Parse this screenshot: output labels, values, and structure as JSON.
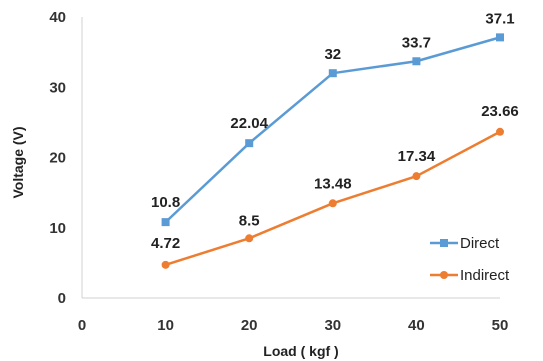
{
  "chart_data": {
    "type": "line",
    "title": "",
    "xlabel": "Load ( kgf )",
    "ylabel": "Voltage (V)",
    "xlim": [
      0,
      50
    ],
    "ylim": [
      0,
      40
    ],
    "x_ticks": [
      0,
      10,
      20,
      30,
      40,
      50
    ],
    "y_ticks": [
      0,
      10,
      20,
      30,
      40
    ],
    "grid": false,
    "legend_position": "bottom-right",
    "x": [
      10,
      20,
      30,
      40,
      50
    ],
    "series": [
      {
        "name": "Direct",
        "values": [
          10.8,
          22.04,
          32,
          33.7,
          37.1
        ],
        "labels": [
          "10.8",
          "22.04",
          "32",
          "33.7",
          "37.1"
        ],
        "color": "#5B9BD5",
        "marker": "square"
      },
      {
        "name": "Indirect",
        "values": [
          4.72,
          8.5,
          13.48,
          17.34,
          23.66
        ],
        "labels": [
          "4.72",
          "8.5",
          "13.48",
          "17.34",
          "23.66"
        ],
        "color": "#ED7D31",
        "marker": "circle"
      }
    ]
  }
}
